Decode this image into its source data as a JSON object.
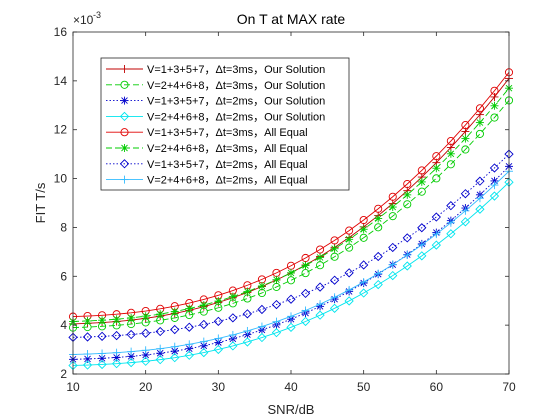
{
  "chart_data": {
    "type": "line",
    "title": "On T at MAX rate",
    "xlabel": "SNR/dB",
    "ylabel": "FIT T/s",
    "y_exponent_label": "×10",
    "y_exponent_power": "-3",
    "xlim": [
      10,
      70
    ],
    "ylim": [
      2,
      16
    ],
    "xticks": [
      10,
      20,
      30,
      40,
      50,
      60,
      70
    ],
    "yticks": [
      2,
      4,
      6,
      8,
      10,
      12,
      14,
      16
    ],
    "grid": false,
    "legend_position": "upper-left",
    "x": [
      10,
      12,
      14,
      16,
      18,
      20,
      22,
      24,
      26,
      28,
      30,
      32,
      34,
      36,
      38,
      40,
      42,
      44,
      46,
      48,
      50,
      52,
      54,
      56,
      58,
      60,
      62,
      64,
      66,
      68,
      70
    ],
    "series": [
      {
        "name": "V=1+3+5+7，Δt=3ms，Our Solution",
        "color": "#c00000",
        "line": "solid",
        "marker": "plus",
        "y0": 4.05,
        "y1": 14.1
      },
      {
        "name": "V=2+4+6+8，Δt=3ms，Our Solution",
        "color": "#00cc00",
        "line": "dashed",
        "marker": "circle",
        "y0": 3.9,
        "y1": 13.2
      },
      {
        "name": "V=1+3+5+7，Δt=2ms，Our Solution",
        "color": "#0000cc",
        "line": "dotted",
        "marker": "star",
        "y0": 2.6,
        "y1": 10.5
      },
      {
        "name": "V=2+4+6+8，Δt=2ms，Our Solution",
        "color": "#00e5ee",
        "line": "solid",
        "marker": "diamond",
        "y0": 2.35,
        "y1": 9.85
      },
      {
        "name": "V=1+3+5+7，Δt=3ms，All Equal",
        "color": "#e00000",
        "line": "solid",
        "marker": "circle",
        "y0": 4.35,
        "y1": 14.35
      },
      {
        "name": "V=2+4+6+8，Δt=3ms，All Equal",
        "color": "#00cc00",
        "line": "dashed",
        "marker": "asterisk",
        "y0": 4.15,
        "y1": 13.7
      },
      {
        "name": "V=1+3+5+7，Δt=2ms，All Equal",
        "color": "#0000cc",
        "line": "dotted",
        "marker": "diamond",
        "y0": 3.5,
        "y1": 11.0
      },
      {
        "name": "V=2+4+6+8，Δt=2ms，All Equal",
        "color": "#33bbff",
        "line": "solid",
        "marker": "plus",
        "y0": 2.8,
        "y1": 10.3
      }
    ]
  }
}
